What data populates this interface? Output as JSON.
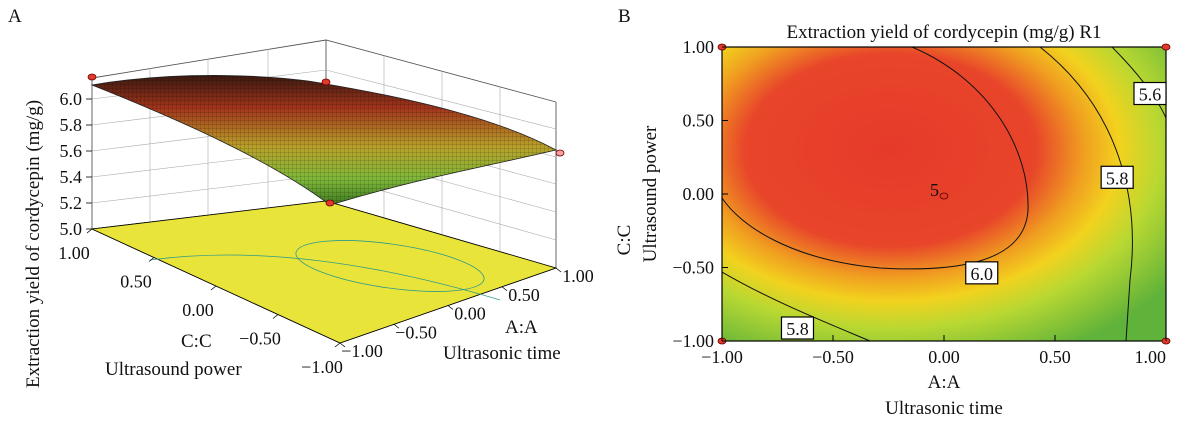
{
  "panels": {
    "a_letter": "A",
    "b_letter": "B"
  },
  "chart_data": [
    {
      "type": "surface3d",
      "panel": "A",
      "title": "",
      "zlabel": "Extraction yield of cordycepin (mg/g)",
      "x_axis": {
        "code": "A:A",
        "name": "Ultrasonic time",
        "ticks": [
          "−1.00",
          "−0.50",
          "0.00",
          "0.50",
          "1.00"
        ],
        "range": [
          -1,
          1
        ]
      },
      "y_axis": {
        "code": "C:C",
        "name": "Ultrasound power",
        "ticks": [
          "1.00",
          "0.50",
          "0.00",
          "−0.50",
          "−1.00"
        ],
        "range": [
          -1,
          1
        ]
      },
      "z_axis": {
        "ticks": [
          "5.0",
          "5.2",
          "5.4",
          "5.6",
          "5.8",
          "6.0"
        ],
        "range": [
          5.0,
          6.2
        ]
      },
      "corner_values": {
        "a_low_c_high": 6.15,
        "a_high_c_high": 5.73,
        "a_low_c_low": 5.68,
        "a_high_c_low": 5.18
      },
      "floor_color": "#e8e43a",
      "surface_colors": [
        "#c81e1e",
        "#d8a020",
        "#7fc23a",
        "#4a8a2a"
      ]
    },
    {
      "type": "contour",
      "panel": "B",
      "title": "Extraction yield of cordycepin (mg/g) R1",
      "xlabel_code": "A:A",
      "xlabel_name": "Ultrasonic time",
      "ylabel_code": "C:C",
      "ylabel_name": "Ultrasound power",
      "xticks": [
        "−1.00",
        "−0.50",
        "0.00",
        "0.50",
        "1.00"
      ],
      "yticks": [
        "1.00",
        "0.50",
        "0.00",
        "−0.50",
        "−1.00"
      ],
      "xlim": [
        -1,
        1
      ],
      "ylim": [
        -1,
        1
      ],
      "contour_labels": [
        {
          "text": "5.6",
          "x": 0.93,
          "y": 0.67
        },
        {
          "text": "5.8",
          "x": 0.78,
          "y": 0.1
        },
        {
          "text": "6.0",
          "x": 0.17,
          "y": -0.55
        },
        {
          "text": "5.8",
          "x": -0.66,
          "y": -1.45
        }
      ],
      "center_label": {
        "text": "5",
        "x": -0.03,
        "y": 0.02
      },
      "colors": {
        "high": "#e8372b",
        "mid": "#f2c21a",
        "low": "#6ebe3a"
      }
    }
  ]
}
